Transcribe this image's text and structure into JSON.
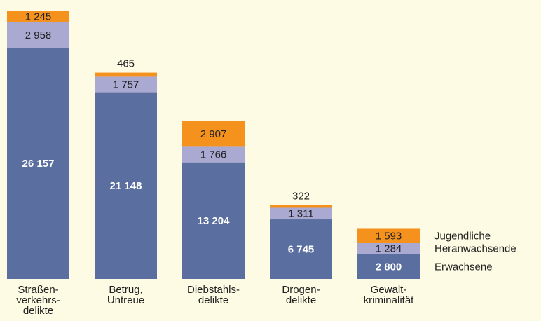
{
  "chart_data": {
    "type": "stacked_bar",
    "categories": [
      [
        "Straßen-",
        "verkehrs-",
        "delikte"
      ],
      [
        "Betrug,",
        "Untreue"
      ],
      [
        "Diebstahls-",
        "delikte"
      ],
      [
        "Drogen-",
        "delikte"
      ],
      [
        "Gewalt-",
        "kriminalität"
      ]
    ],
    "series": [
      {
        "name": "Erwachsene",
        "color": "#5a6e9f",
        "values": [
          26157,
          21148,
          13204,
          6745,
          2800
        ],
        "value_labels": [
          "26 157",
          "21 148",
          "13 204",
          "6 745",
          "2 800"
        ]
      },
      {
        "name": "Heranwachsende",
        "color": "#aaa9d2",
        "values": [
          2958,
          1757,
          1766,
          1311,
          1284
        ],
        "value_labels": [
          "2 958",
          "1 757",
          "1 766",
          "1 311",
          "1 284"
        ]
      },
      {
        "name": "Jugendliche",
        "color": "#f5921e",
        "values": [
          1245,
          465,
          2907,
          322,
          1593
        ],
        "value_labels": [
          "1 245",
          "465",
          "2 907",
          "322",
          "1 593"
        ]
      }
    ],
    "ylim": [
      0,
      30400
    ]
  }
}
